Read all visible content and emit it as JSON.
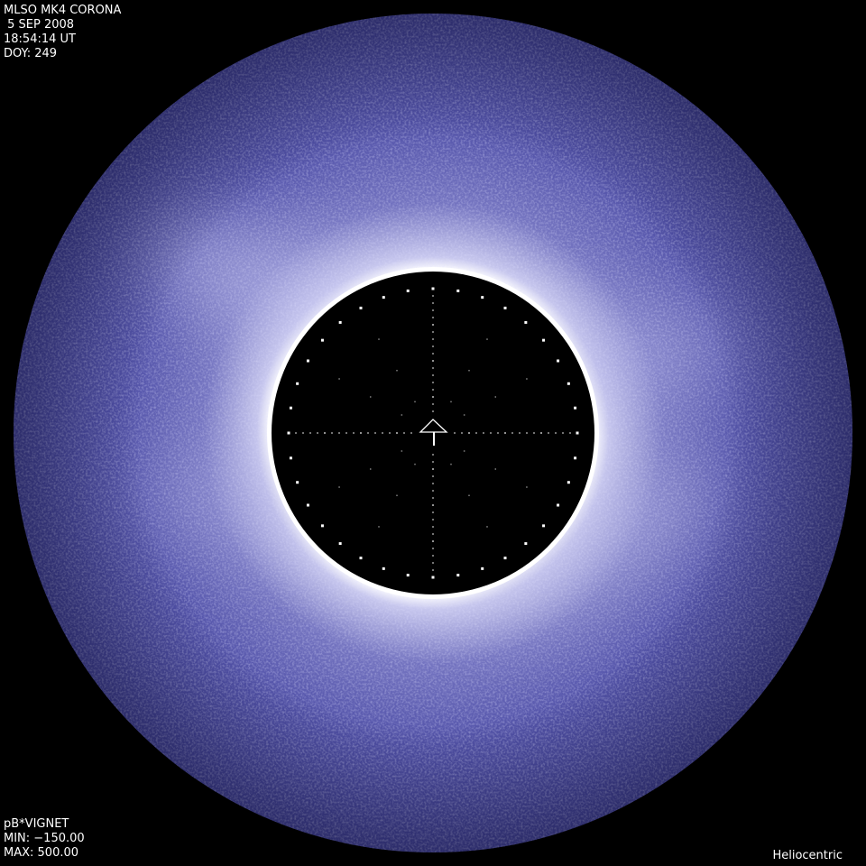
{
  "header": {
    "instrument": "MLSO MK4 CORONA",
    "date": " 5 SEP 2008",
    "time": "18:54:14 UT",
    "doy": "DOY: 249"
  },
  "footer": {
    "product": "pB*VIGNET",
    "min": "MIN: −150.00",
    "max": "MAX: 500.00",
    "frame": "Heliocentric"
  },
  "colors": {
    "corona": "#4c4ca6",
    "corona_bright": "#b8b8e6",
    "background": "#000000"
  },
  "icons": {
    "center_marker": "north-arrow-icon"
  }
}
